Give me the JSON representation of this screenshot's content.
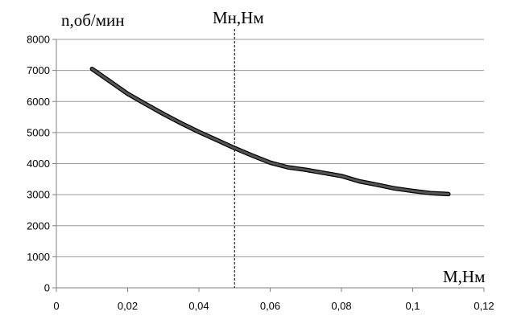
{
  "chart_data": {
    "type": "line",
    "title": "",
    "xlabel": "M,Нм",
    "ylabel": "n,об/мин",
    "marker_label": "Мн,Нм",
    "marker_x": 0.05,
    "xlim": [
      0,
      0.12
    ],
    "ylim": [
      0,
      8000
    ],
    "x_ticks": [
      "0",
      "0,02",
      "0,04",
      "0,06",
      "0,08",
      "0,1",
      "0,12"
    ],
    "x_tick_values": [
      0,
      0.02,
      0.04,
      0.06,
      0.08,
      0.1,
      0.12
    ],
    "y_ticks": [
      "0",
      "1000",
      "2000",
      "3000",
      "4000",
      "5000",
      "6000",
      "7000",
      "8000"
    ],
    "y_tick_values": [
      0,
      1000,
      2000,
      3000,
      4000,
      5000,
      6000,
      7000,
      8000
    ],
    "grid": "horizontal",
    "legend": "none",
    "series": [
      {
        "x": [
          0.01,
          0.015,
          0.02,
          0.025,
          0.03,
          0.035,
          0.04,
          0.045,
          0.05,
          0.055,
          0.06,
          0.065,
          0.07,
          0.075,
          0.08,
          0.085,
          0.09,
          0.095,
          0.1,
          0.105,
          0.11
        ],
        "y": [
          7050,
          6650,
          6250,
          5920,
          5600,
          5300,
          5020,
          4760,
          4500,
          4260,
          4030,
          3880,
          3800,
          3700,
          3600,
          3430,
          3320,
          3200,
          3120,
          3050,
          3020
        ],
        "line_color": "#555555",
        "outline_color": "#000000"
      }
    ]
  }
}
